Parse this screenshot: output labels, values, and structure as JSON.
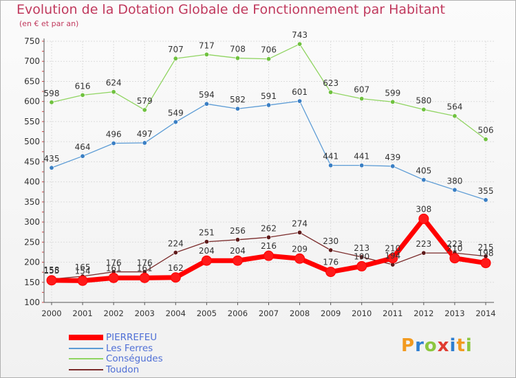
{
  "header": {
    "title": "Evolution de la Dotation Globale de Fonctionnement par Habitant",
    "subtitle": "(en € et par an)"
  },
  "logo": {
    "letters": [
      "P",
      "r",
      "o",
      "x",
      "i",
      "t",
      "i"
    ],
    "colors": [
      "#f29a1f",
      "#2f7fd1",
      "#8cc63f",
      "#e03c31",
      "#2f7fd1",
      "#f29a1f",
      "#8cc63f"
    ]
  },
  "chart_data": {
    "type": "line",
    "title": "Evolution de la Dotation Globale de Fonctionnement par Habitant",
    "subtitle": "(en € et par an)",
    "x": [
      "2000",
      "2001",
      "2002",
      "2003",
      "2004",
      "2005",
      "2006",
      "2007",
      "2008",
      "2009",
      "2010",
      "2011",
      "2012",
      "2013",
      "2014"
    ],
    "ylim": [
      100,
      750
    ],
    "yticks": [
      100,
      150,
      200,
      250,
      300,
      350,
      400,
      450,
      500,
      550,
      600,
      650,
      700,
      750
    ],
    "grid": true,
    "legend_position": "bottom-left",
    "series": [
      {
        "name": "PIERREFEU",
        "color": "#ff0000",
        "marker": "#ff1a1a",
        "bold": true,
        "values": [
          155,
          154,
          161,
          161,
          162,
          204,
          204,
          216,
          209,
          176,
          190,
          210,
          308,
          210,
          198
        ]
      },
      {
        "name": "Les Ferres",
        "color": "#5b9bd5",
        "marker": "#3a7fc4",
        "values": [
          435,
          464,
          496,
          497,
          549,
          594,
          582,
          591,
          601,
          441,
          441,
          439,
          405,
          380,
          355
        ]
      },
      {
        "name": "Conségudes",
        "color": "#8fd460",
        "marker": "#6fc13f",
        "values": [
          598,
          616,
          624,
          579,
          707,
          717,
          708,
          706,
          743,
          623,
          607,
          599,
          580,
          564,
          506
        ]
      },
      {
        "name": "Toudon",
        "color": "#7a2a2a",
        "marker": "#5e1a1a",
        "values": [
          158,
          165,
          176,
          176,
          224,
          251,
          256,
          262,
          274,
          230,
          213,
          194,
          223,
          223,
          215
        ]
      }
    ]
  }
}
